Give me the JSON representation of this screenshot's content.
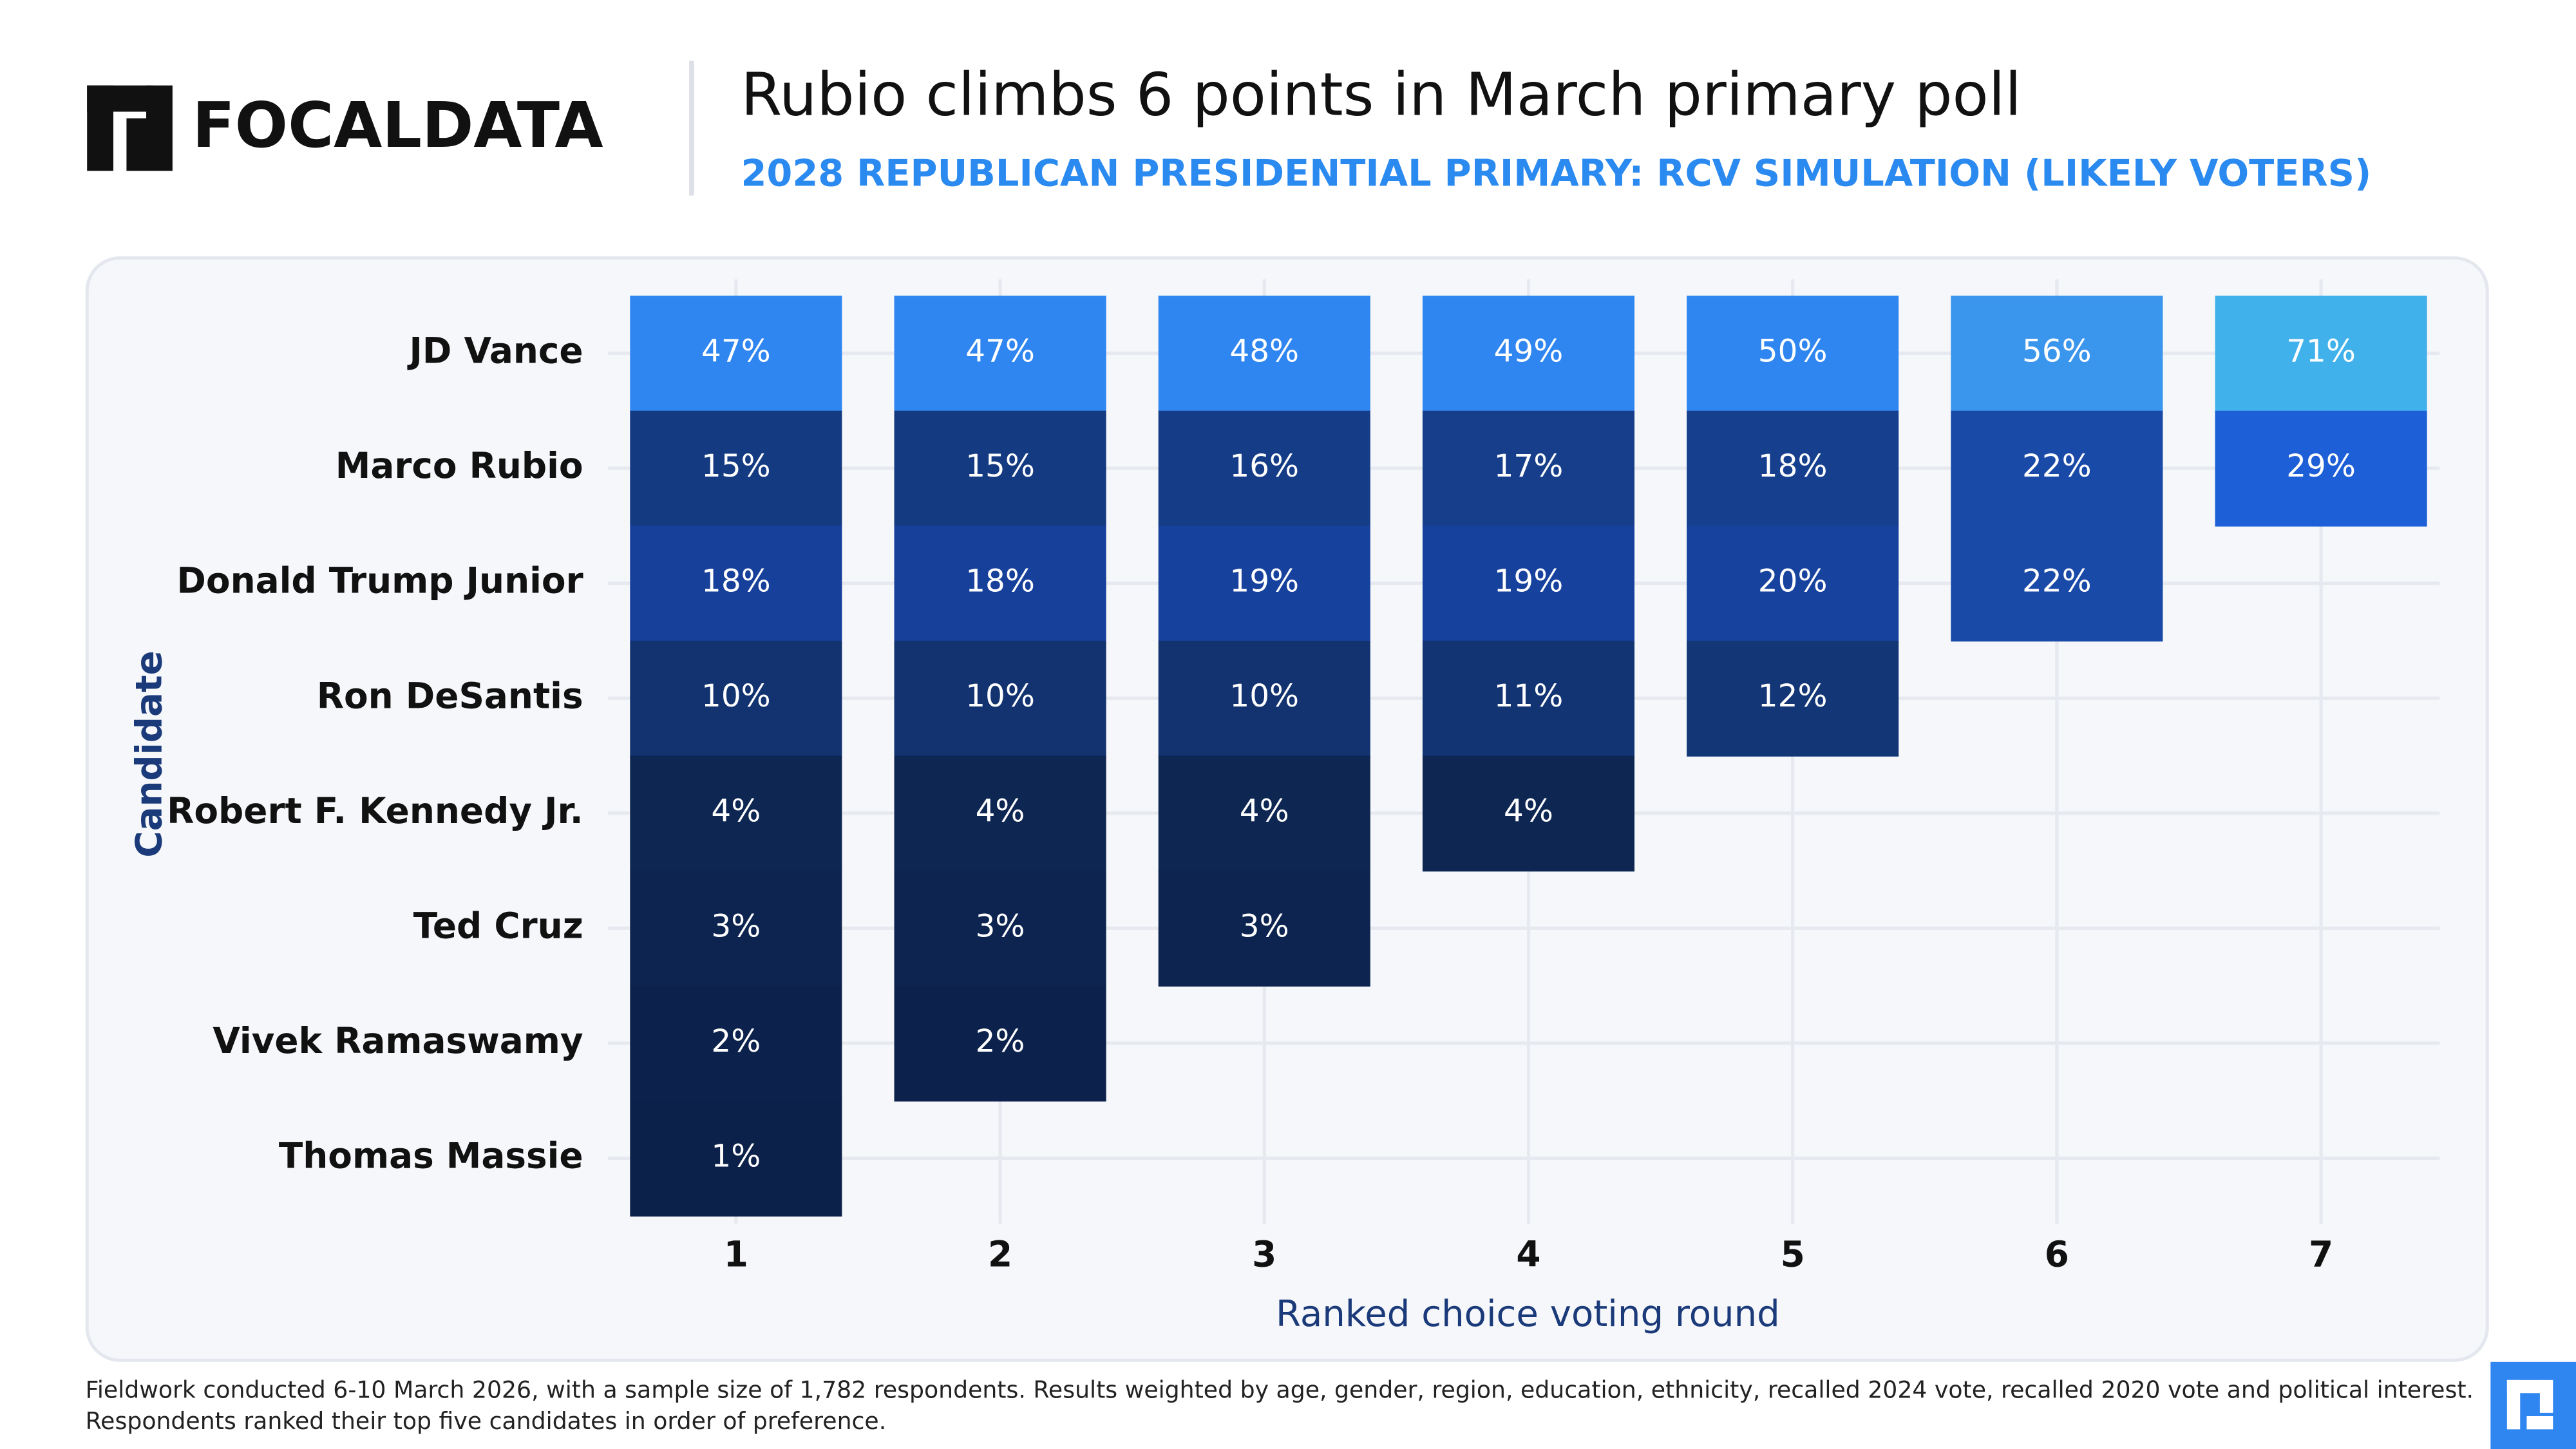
{
  "brand": "FOCALDATA",
  "chart_data": {
    "type": "heatmap",
    "title": "Rubio climbs 6 points in March primary poll",
    "subtitle": "2028 REPUBLICAN PRESIDENTIAL PRIMARY: RCV SIMULATION (LIKELY VOTERS)",
    "y_label": "Candidate",
    "x_label": "Ranked choice voting round",
    "categories": [
      "JD Vance",
      "Marco Rubio",
      "Donald Trump Junior",
      "Ron DeSantis",
      "Robert F. Kennedy Jr.",
      "Ted Cruz",
      "Vivek Ramaswamy",
      "Thomas Massie"
    ],
    "x": [
      1,
      2,
      3,
      4,
      5,
      6,
      7
    ],
    "values": [
      [
        47,
        47,
        48,
        49,
        50,
        56,
        71
      ],
      [
        15,
        15,
        16,
        17,
        18,
        22,
        29
      ],
      [
        18,
        18,
        19,
        19,
        20,
        22,
        null
      ],
      [
        10,
        10,
        10,
        11,
        12,
        null,
        null
      ],
      [
        4,
        4,
        4,
        4,
        null,
        null,
        null
      ],
      [
        3,
        3,
        3,
        null,
        null,
        null,
        null
      ],
      [
        2,
        2,
        null,
        null,
        null,
        null,
        null
      ],
      [
        1,
        null,
        null,
        null,
        null,
        null,
        null
      ]
    ],
    "value_labels": [
      [
        "47%",
        "47%",
        "48%",
        "49%",
        "50%",
        "56%",
        "71%"
      ],
      [
        "15%",
        "15%",
        "16%",
        "17%",
        "18%",
        "22%",
        "29%"
      ],
      [
        "18%",
        "18%",
        "19%",
        "19%",
        "20%",
        "22%",
        null
      ],
      [
        "10%",
        "10%",
        "10%",
        "11%",
        "12%",
        null,
        null
      ],
      [
        "4%",
        "4%",
        "4%",
        "4%",
        null,
        null,
        null
      ],
      [
        "3%",
        "3%",
        "3%",
        null,
        null,
        null,
        null
      ],
      [
        "2%",
        "2%",
        null,
        null,
        null,
        null,
        null
      ],
      [
        "1%",
        null,
        null,
        null,
        null,
        null,
        null
      ]
    ],
    "colors": [
      [
        "#2f86f0",
        "#2f86f0",
        "#2f86f0",
        "#2f86f0",
        "#2f86f0",
        "#3a95ec",
        "#40b1ea"
      ],
      [
        "#143a82",
        "#143a82",
        "#153c86",
        "#163e8a",
        "#16408e",
        "#1a4aa8",
        "#1d5fd6"
      ],
      [
        "#16409a",
        "#16409a",
        "#16419c",
        "#16419c",
        "#17439e",
        "#1a4aa8",
        null
      ],
      [
        "#123370",
        "#123370",
        "#123370",
        "#123473",
        "#133676",
        null,
        null
      ],
      [
        "#0e2652",
        "#0e2652",
        "#0e2652",
        "#0e2652",
        null,
        null,
        null
      ],
      [
        "#0d2450",
        "#0d2450",
        "#0d2450",
        null,
        null,
        null,
        null
      ],
      [
        "#0c224c",
        "#0c224c",
        null,
        null,
        null,
        null,
        null
      ],
      [
        "#0c214a",
        null,
        null,
        null,
        null,
        null,
        null
      ]
    ],
    "grid": true
  },
  "footnote": [
    "Fieldwork conducted 6-10 March 2026, with a sample size of 1,782 respondents. Results weighted by age, gender, region, education, ethnicity, recalled 2024 vote, recalled 2020 vote and political interest.",
    "Respondents ranked their top five candidates in order of preference."
  ]
}
